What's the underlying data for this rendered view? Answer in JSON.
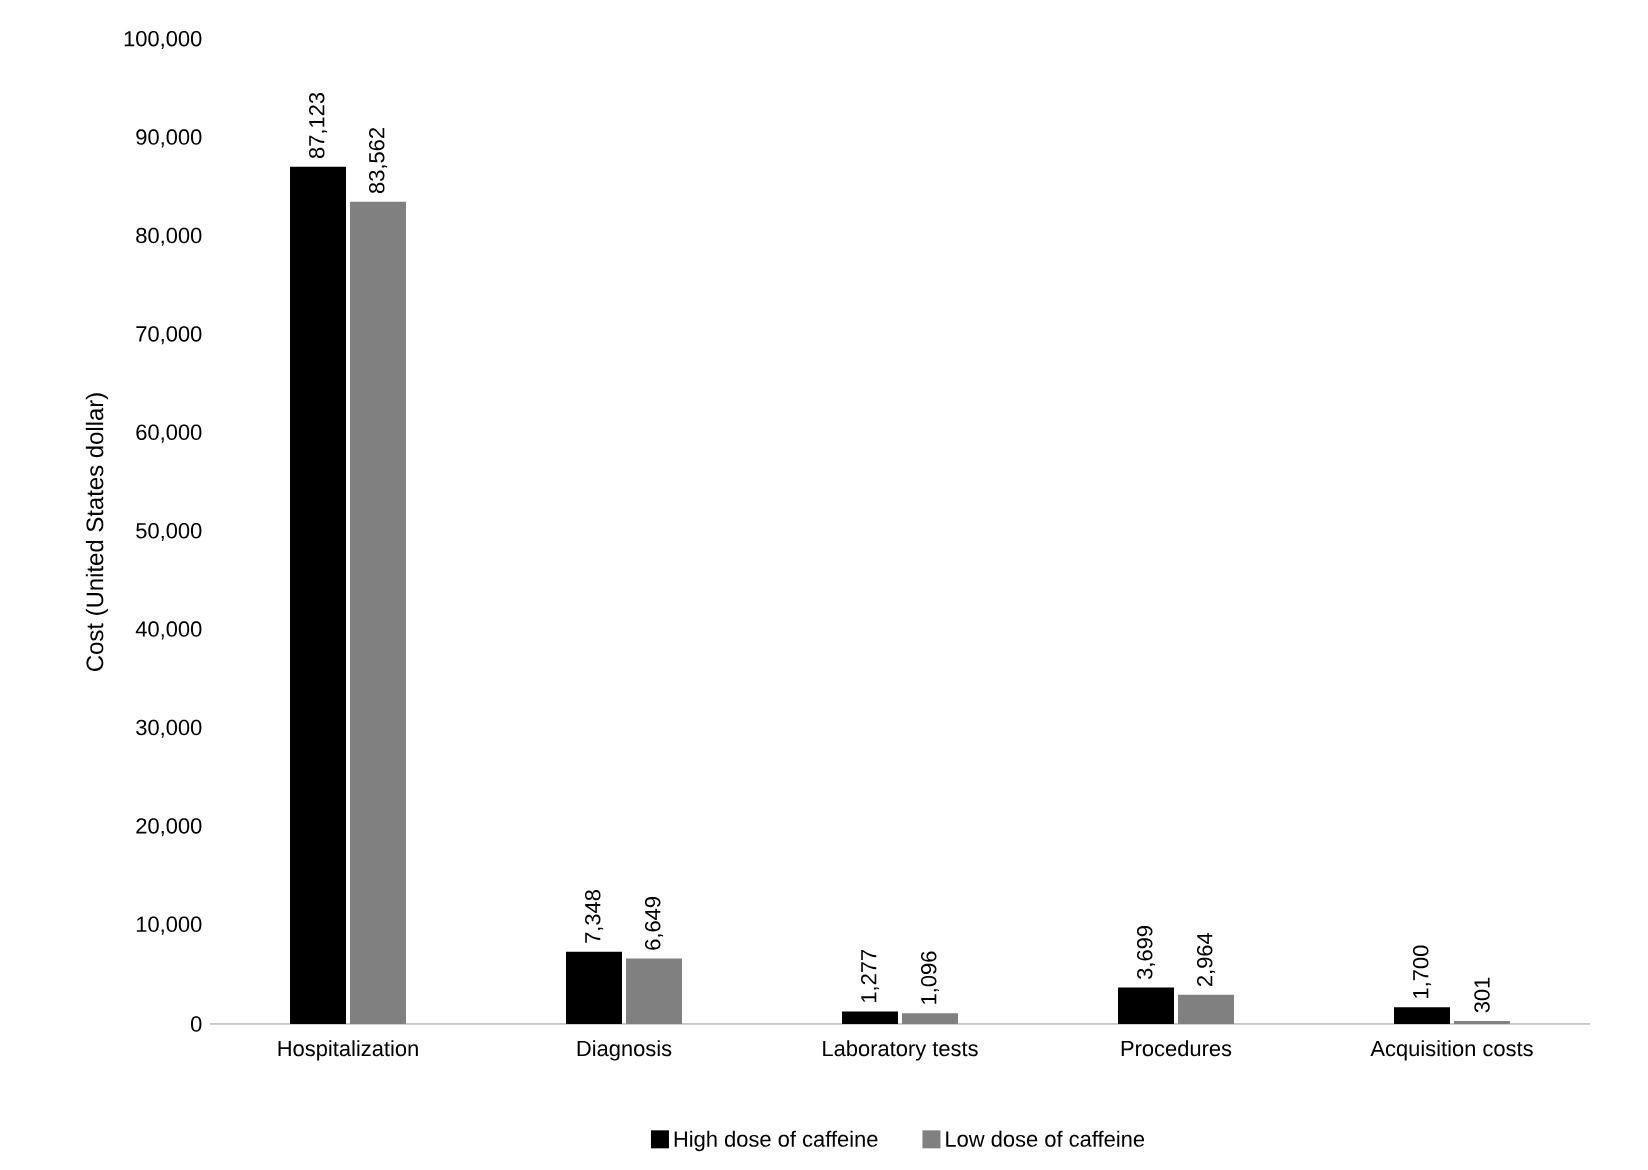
{
  "chart_data": {
    "type": "bar",
    "ylabel": "Cost (United States dollar)",
    "categories": [
      "Hospitalization",
      "Diagnosis",
      "Laboratory tests",
      "Procedures",
      "Acquisition costs"
    ],
    "series": [
      {
        "name": "High dose of caffeine",
        "color": "#000000",
        "values": [
          87123,
          7348,
          1277,
          3699,
          1700
        ],
        "value_labels": [
          "87,123",
          "7,348",
          "1,277",
          "3,699",
          "1,700"
        ]
      },
      {
        "name": "Low dose of  caffeine",
        "color": "#808080",
        "values": [
          83562,
          6649,
          1096,
          2964,
          301
        ],
        "value_labels": [
          "83,562",
          "6,649",
          "1,096",
          "2,964",
          "301"
        ]
      }
    ],
    "ylim": [
      0,
      100000
    ],
    "yticks": [
      {
        "value": 0,
        "label": "0"
      },
      {
        "value": 10000,
        "label": "10,000"
      },
      {
        "value": 20000,
        "label": "20,000"
      },
      {
        "value": 30000,
        "label": "30,000"
      },
      {
        "value": 40000,
        "label": "40,000"
      },
      {
        "value": 50000,
        "label": "50,000"
      },
      {
        "value": 60000,
        "label": "60,000"
      },
      {
        "value": 70000,
        "label": "70,000"
      },
      {
        "value": 80000,
        "label": "80,000"
      },
      {
        "value": 90000,
        "label": "90,000"
      },
      {
        "value": 100000,
        "label": "100,000"
      }
    ],
    "legend": "bottom",
    "grid": false
  }
}
